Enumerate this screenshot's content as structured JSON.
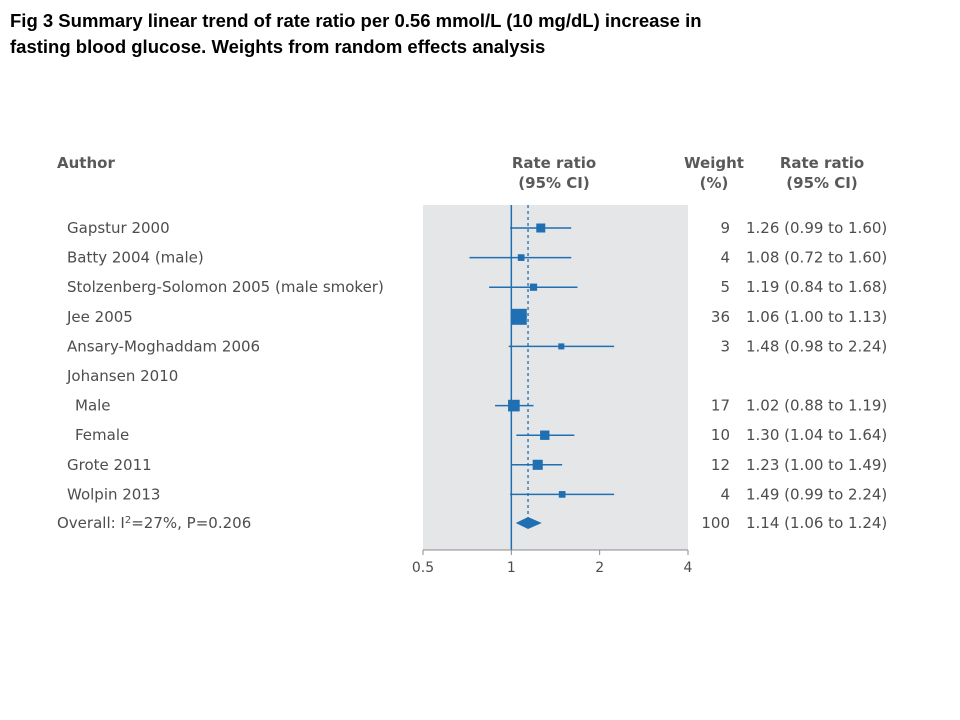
{
  "caption": {
    "line1": "Fig 3 Summary linear trend of rate ratio per 0.56 mmol/L (10 mg/dL) increase in",
    "line2": "fasting blood glucose. Weights from random effects analysis"
  },
  "headers": {
    "author": "Author",
    "rr_line1": "Rate ratio",
    "rr_line2": "(95% CI)",
    "weight_line1": "Weight",
    "weight_line2": "(%)",
    "rr2_line1": "Rate ratio",
    "rr2_line2": "(95% CI)"
  },
  "colors": {
    "accent": "#1f6fb2",
    "panel": "#e5e6e8",
    "text": "#4d4d4f"
  },
  "chart_data": {
    "type": "forest",
    "x_scale": "log",
    "x_ticks": [
      0.5,
      1,
      2,
      4
    ],
    "x_tick_labels": [
      "0.5",
      "1",
      "2",
      "4"
    ],
    "xlim": [
      0.5,
      4
    ],
    "null_line": 1,
    "pooled_line": 1.14,
    "rows": [
      {
        "label": "Gapstur 2000",
        "indent": false,
        "weight": "9",
        "ci_text": "1.26 (0.99 to 1.60)",
        "rr": 1.26,
        "lo": 0.99,
        "hi": 1.6,
        "w": 9
      },
      {
        "label": "Batty 2004 (male)",
        "indent": false,
        "weight": "4",
        "ci_text": "1.08 (0.72 to 1.60)",
        "rr": 1.08,
        "lo": 0.72,
        "hi": 1.6,
        "w": 4
      },
      {
        "label": "Stolzenberg-Solomon 2005 (male smoker)",
        "indent": false,
        "weight": "5",
        "ci_text": "1.19 (0.84 to 1.68)",
        "rr": 1.19,
        "lo": 0.84,
        "hi": 1.68,
        "w": 5
      },
      {
        "label": "Jee 2005",
        "indent": false,
        "weight": "36",
        "ci_text": "1.06 (1.00 to 1.13)",
        "rr": 1.06,
        "lo": 1.0,
        "hi": 1.13,
        "w": 36
      },
      {
        "label": "Ansary-Moghaddam 2006",
        "indent": false,
        "weight": "3",
        "ci_text": "1.48 (0.98 to 2.24)",
        "rr": 1.48,
        "lo": 0.98,
        "hi": 2.24,
        "w": 3
      },
      {
        "label": "Johansen 2010",
        "indent": false,
        "weight": "",
        "ci_text": "",
        "rr": null,
        "lo": null,
        "hi": null,
        "w": null
      },
      {
        "label": "Male",
        "indent": true,
        "weight": "17",
        "ci_text": "1.02 (0.88 to 1.19)",
        "rr": 1.02,
        "lo": 0.88,
        "hi": 1.19,
        "w": 17
      },
      {
        "label": "Female",
        "indent": true,
        "weight": "10",
        "ci_text": "1.30 (1.04 to 1.64)",
        "rr": 1.3,
        "lo": 1.04,
        "hi": 1.64,
        "w": 10
      },
      {
        "label": "Grote 2011",
        "indent": false,
        "weight": "12",
        "ci_text": "1.23 (1.00 to 1.49)",
        "rr": 1.23,
        "lo": 1.0,
        "hi": 1.49,
        "w": 12
      },
      {
        "label": "Wolpin 2013",
        "indent": false,
        "weight": "4",
        "ci_text": "1.49 (0.99 to 2.24)",
        "rr": 1.49,
        "lo": 0.99,
        "hi": 2.24,
        "w": 4
      }
    ],
    "overall": {
      "label_prefix": "Overall: I",
      "label_sup": "2",
      "label_suffix": "=27%, P=0.206",
      "weight": "100",
      "ci_text": "1.14 (1.06 to 1.24)",
      "rr": 1.14,
      "lo": 1.06,
      "hi": 1.24
    }
  }
}
